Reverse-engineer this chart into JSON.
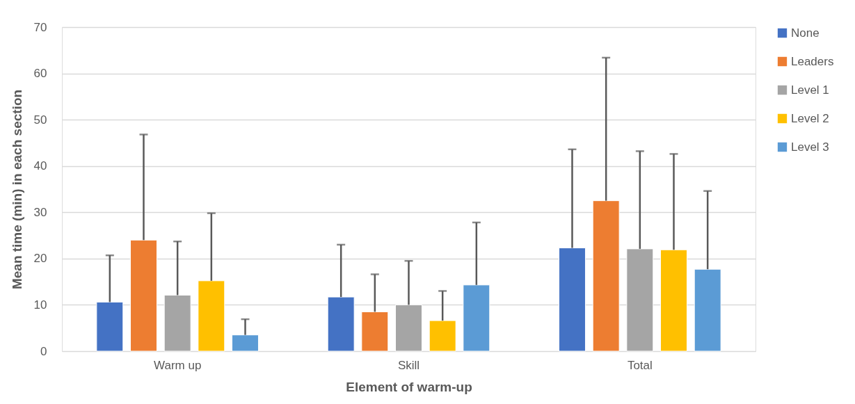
{
  "chart_data": {
    "type": "bar",
    "xlabel": "Element of warm-up",
    "ylabel": "Mean time (min) in each section",
    "categories": [
      "Warm up",
      "Skill",
      "Total"
    ],
    "series": [
      {
        "name": "None",
        "color": "#4472c4",
        "values": [
          10.6,
          11.7,
          22.3
        ],
        "errors": [
          [
            10.6,
            20.7
          ],
          [
            11.7,
            23.0
          ],
          [
            22.3,
            43.6
          ]
        ]
      },
      {
        "name": "Leaders",
        "color": "#ed7d31",
        "values": [
          24.0,
          8.5,
          32.5
        ],
        "errors": [
          [
            24.0,
            46.8
          ],
          [
            8.5,
            16.6
          ],
          [
            32.5,
            63.4
          ]
        ]
      },
      {
        "name": "Level 1",
        "color": "#a5a5a5",
        "values": [
          12.1,
          10.0,
          22.1
        ],
        "errors": [
          [
            12.1,
            23.7
          ],
          [
            10.0,
            19.5
          ],
          [
            22.1,
            43.2
          ]
        ]
      },
      {
        "name": "Level 2",
        "color": "#ffc000",
        "values": [
          15.2,
          6.6,
          21.9
        ],
        "errors": [
          [
            15.2,
            29.8
          ],
          [
            6.6,
            13.0
          ],
          [
            21.9,
            42.6
          ]
        ]
      },
      {
        "name": "Level 3",
        "color": "#5b9bd5",
        "values": [
          3.5,
          14.3,
          17.7
        ],
        "errors": [
          [
            3.5,
            6.9
          ],
          [
            14.3,
            27.8
          ],
          [
            17.7,
            34.6
          ]
        ]
      }
    ],
    "ylim": [
      0,
      70
    ],
    "yticks": [
      0,
      10,
      20,
      30,
      40,
      50,
      60,
      70
    ],
    "grid": "y",
    "legend": "right"
  }
}
